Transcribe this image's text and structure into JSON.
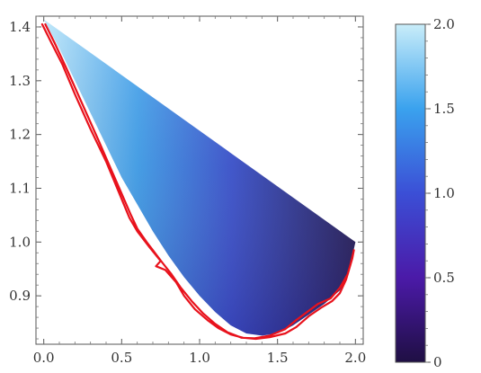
{
  "chart_data": {
    "type": "area",
    "title": "",
    "xlabel": "",
    "ylabel": "",
    "xlim": [
      -0.05,
      2.05
    ],
    "ylim": [
      0.81,
      1.42
    ],
    "x_ticks": [
      {
        "value": 0.0,
        "label": "0.0"
      },
      {
        "value": 0.5,
        "label": "0.5"
      },
      {
        "value": 1.0,
        "label": "1.0"
      },
      {
        "value": 1.5,
        "label": "1.5"
      },
      {
        "value": 2.0,
        "label": "2.0"
      }
    ],
    "y_ticks": [
      {
        "value": 0.9,
        "label": "0.9"
      },
      {
        "value": 1.0,
        "label": "1.0"
      },
      {
        "value": 1.1,
        "label": "1.1"
      },
      {
        "value": 1.2,
        "label": "1.2"
      },
      {
        "value": 1.3,
        "label": "1.3"
      },
      {
        "value": 1.4,
        "label": "1.4"
      }
    ],
    "region": {
      "upper_boundary": [
        [
          0.0,
          1.414
        ],
        [
          2.0,
          1.0
        ]
      ],
      "lower_boundary": [
        [
          0.0,
          1.414
        ],
        [
          0.1,
          1.36
        ],
        [
          0.2,
          1.3
        ],
        [
          0.3,
          1.24
        ],
        [
          0.4,
          1.18
        ],
        [
          0.5,
          1.12
        ],
        [
          0.6,
          1.07
        ],
        [
          0.7,
          1.02
        ],
        [
          0.8,
          0.975
        ],
        [
          0.9,
          0.935
        ],
        [
          1.0,
          0.9
        ],
        [
          1.1,
          0.87
        ],
        [
          1.2,
          0.845
        ],
        [
          1.3,
          0.83
        ],
        [
          1.4,
          0.826
        ],
        [
          1.5,
          0.83
        ],
        [
          1.6,
          0.845
        ],
        [
          1.7,
          0.865
        ],
        [
          1.8,
          0.885
        ],
        [
          1.9,
          0.91
        ],
        [
          1.95,
          0.935
        ],
        [
          2.0,
          1.0
        ]
      ]
    },
    "series": [
      {
        "type": "line",
        "color": "#e8121c",
        "points": [
          [
            -0.01,
            1.405
          ],
          [
            0.05,
            1.37
          ],
          [
            0.12,
            1.33
          ],
          [
            0.2,
            1.275
          ],
          [
            0.3,
            1.21
          ],
          [
            0.4,
            1.15
          ],
          [
            0.5,
            1.08
          ],
          [
            0.55,
            1.045
          ],
          [
            0.6,
            1.02
          ],
          [
            0.68,
            0.99
          ],
          [
            0.75,
            0.965
          ],
          [
            0.72,
            0.955
          ],
          [
            0.78,
            0.948
          ],
          [
            0.85,
            0.925
          ],
          [
            0.9,
            0.9
          ],
          [
            0.97,
            0.875
          ],
          [
            1.05,
            0.855
          ],
          [
            1.12,
            0.84
          ],
          [
            1.2,
            0.828
          ],
          [
            1.28,
            0.822
          ],
          [
            1.36,
            0.82
          ],
          [
            1.45,
            0.823
          ],
          [
            1.55,
            0.83
          ],
          [
            1.62,
            0.842
          ],
          [
            1.7,
            0.862
          ],
          [
            1.78,
            0.878
          ],
          [
            1.85,
            0.89
          ],
          [
            1.9,
            0.905
          ],
          [
            1.94,
            0.93
          ],
          [
            1.97,
            0.96
          ],
          [
            1.99,
            0.985
          ],
          [
            1.98,
            0.97
          ],
          [
            1.95,
            0.94
          ],
          [
            1.9,
            0.915
          ],
          [
            1.84,
            0.895
          ],
          [
            1.76,
            0.885
          ],
          [
            1.7,
            0.872
          ],
          [
            1.62,
            0.855
          ],
          [
            1.55,
            0.838
          ],
          [
            1.45,
            0.826
          ],
          [
            1.35,
            0.821
          ],
          [
            1.27,
            0.822
          ],
          [
            1.18,
            0.832
          ],
          [
            1.1,
            0.848
          ],
          [
            1.02,
            0.868
          ],
          [
            0.95,
            0.89
          ],
          [
            0.88,
            0.915
          ],
          [
            0.82,
            0.94
          ],
          [
            0.76,
            0.962
          ],
          [
            0.7,
            0.985
          ],
          [
            0.66,
            1.0
          ],
          [
            0.6,
            1.025
          ],
          [
            0.56,
            1.05
          ],
          [
            0.5,
            1.09
          ],
          [
            0.44,
            1.13
          ],
          [
            0.35,
            1.19
          ],
          [
            0.25,
            1.255
          ],
          [
            0.15,
            1.32
          ],
          [
            0.07,
            1.37
          ],
          [
            0.01,
            1.405
          ]
        ]
      }
    ],
    "colorbar": {
      "range": [
        0,
        2
      ],
      "ticks": [
        {
          "value": 0,
          "label": "0"
        },
        {
          "value": 0.5,
          "label": "0.5"
        },
        {
          "value": 1.0,
          "label": "1.0"
        },
        {
          "value": 1.5,
          "label": "1.5"
        },
        {
          "value": 2.0,
          "label": "2.0"
        }
      ],
      "color_stops": [
        {
          "value": 0.0,
          "color": "#1f0f43"
        },
        {
          "value": 0.5,
          "color": "#4b1aa8"
        },
        {
          "value": 1.0,
          "color": "#3b4fd6"
        },
        {
          "value": 1.5,
          "color": "#3aa2ee"
        },
        {
          "value": 2.0,
          "color": "#c9edf9"
        }
      ]
    },
    "grid": false,
    "legend": "none"
  }
}
